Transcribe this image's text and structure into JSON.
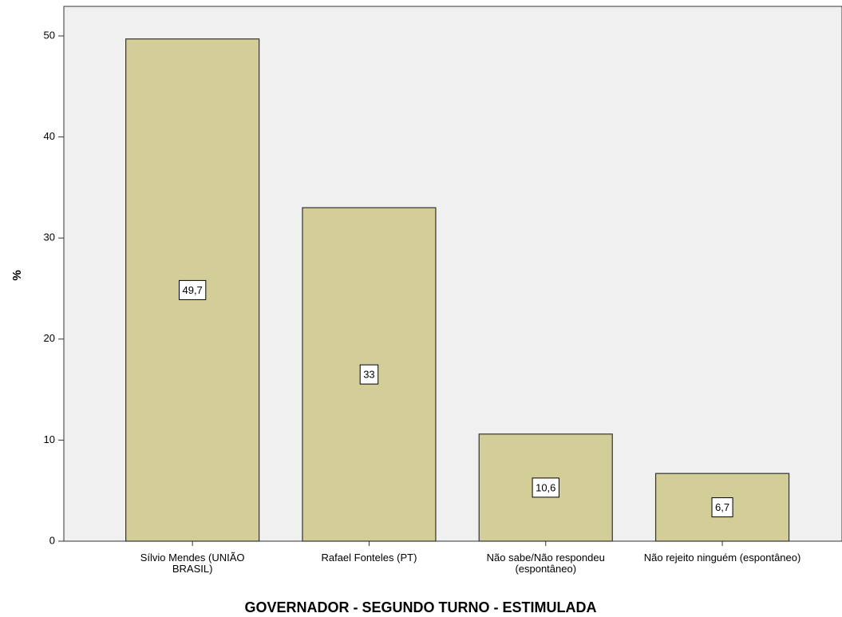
{
  "chart_data": {
    "type": "bar",
    "categories": [
      "Sílvio Mendes (UNIÃO BRASIL)",
      "Rafael Fonteles (PT)",
      "Não sabe/Não respondeu (espontâneo)",
      "Não rejeito ninguém (espontâneo)"
    ],
    "values": [
      49.7,
      33,
      10.6,
      6.7
    ],
    "value_labels": [
      "49,7",
      "33",
      "10,6",
      "6,7"
    ],
    "color": "#d3ce97",
    "ylabel": "%",
    "xlabel": "GOVERNADOR - SEGUNDO TURNO - ESTIMULADA",
    "ylim": [
      0,
      50
    ],
    "yticks": [
      0,
      10,
      20,
      30,
      40,
      50
    ],
    "grid": false
  }
}
